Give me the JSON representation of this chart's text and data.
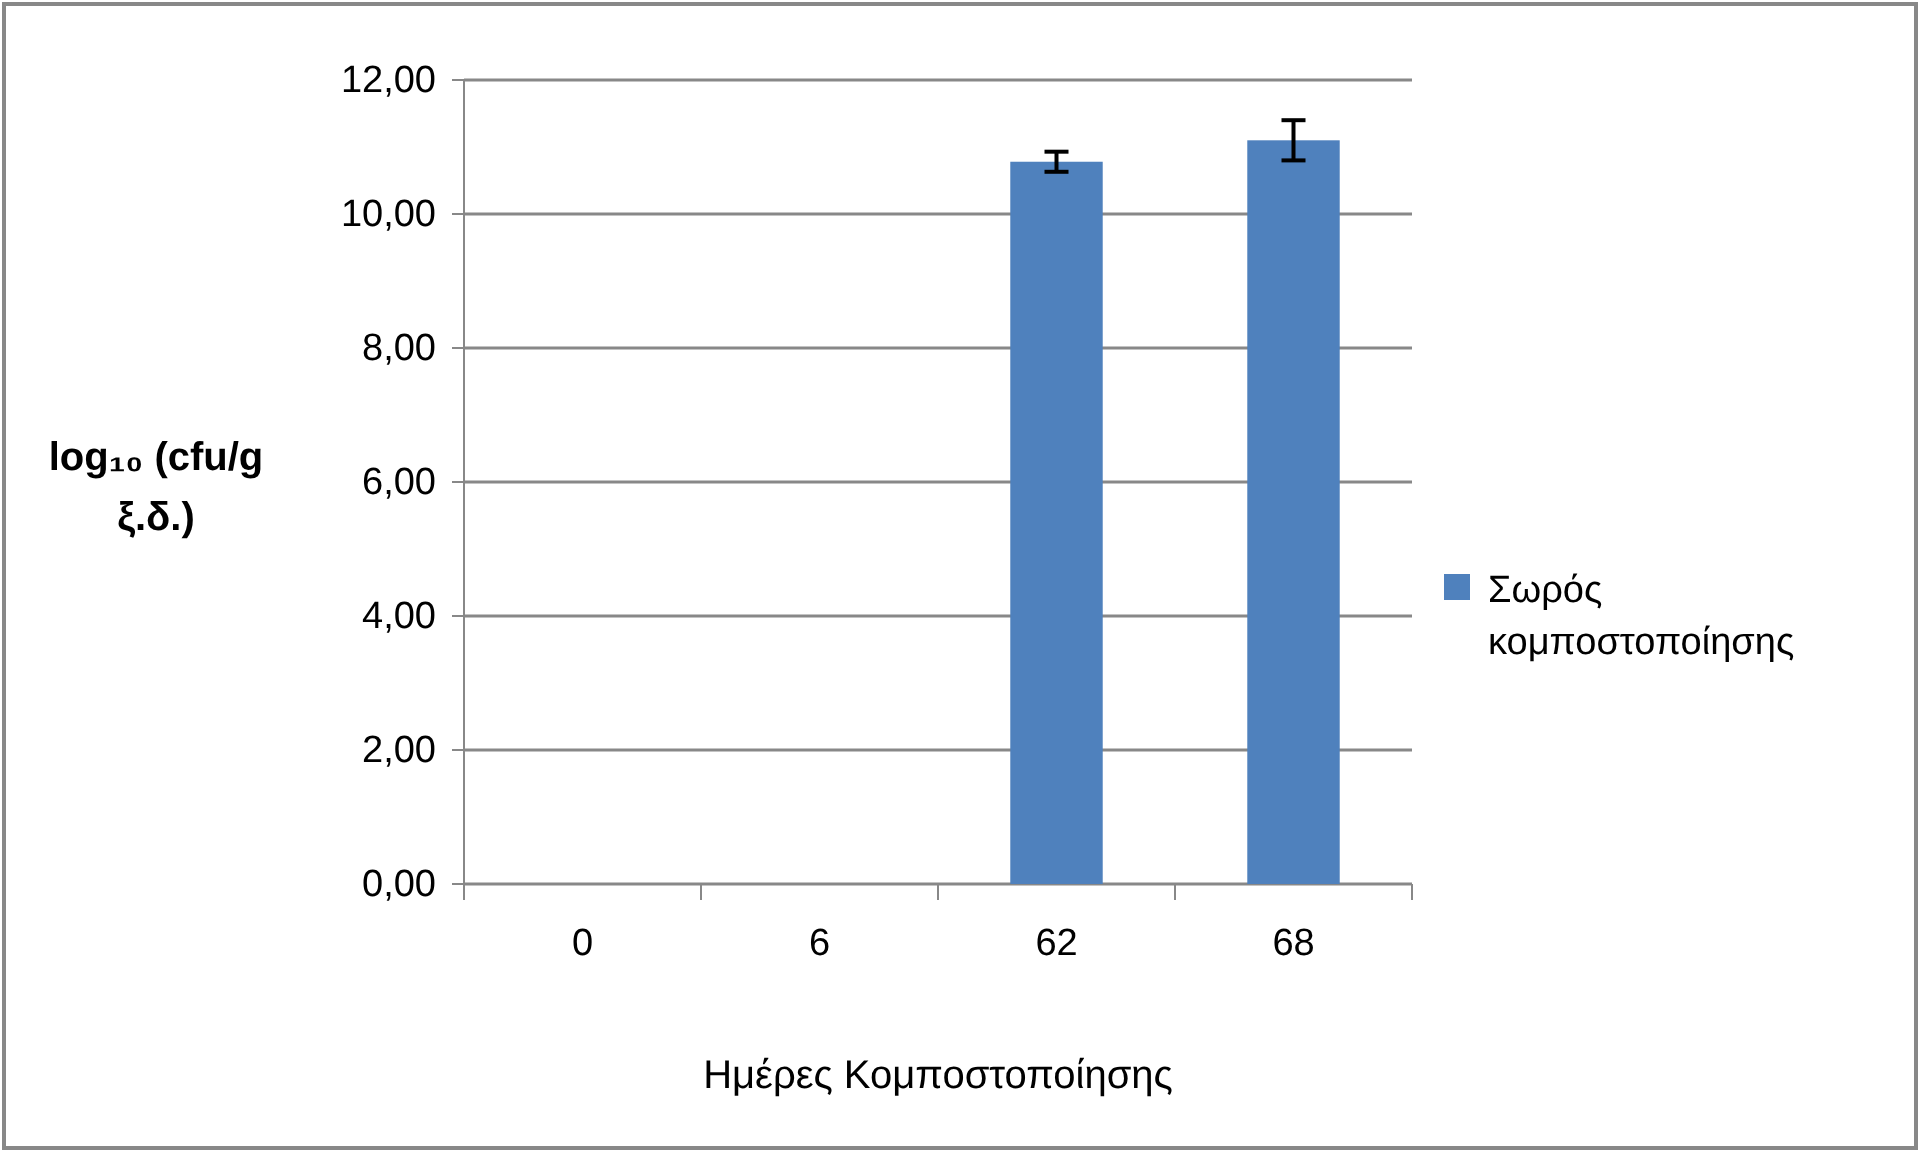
{
  "chart_data": {
    "type": "bar",
    "xlabel": "Ημέρες Κομποστοποίησης",
    "ylabel": "log₁₀ (cfu/g ξ.δ.)",
    "categories": [
      "0",
      "6",
      "62",
      "68"
    ],
    "series": [
      {
        "name": "Σωρός κομποστοποίησης",
        "color": "#4f81bd",
        "values": [
          null,
          null,
          10.78,
          11.1
        ],
        "errors": [
          null,
          null,
          0.15,
          0.3
        ]
      }
    ],
    "ylim": [
      0,
      12
    ],
    "yticks": [
      {
        "value": 0,
        "label": "0,00"
      },
      {
        "value": 2,
        "label": "2,00"
      },
      {
        "value": 4,
        "label": "4,00"
      },
      {
        "value": 6,
        "label": "6,00"
      },
      {
        "value": 8,
        "label": "8,00"
      },
      {
        "value": 10,
        "label": "10,00"
      },
      {
        "value": 12,
        "label": "12,00"
      }
    ],
    "grid": "y",
    "legend": "right"
  }
}
